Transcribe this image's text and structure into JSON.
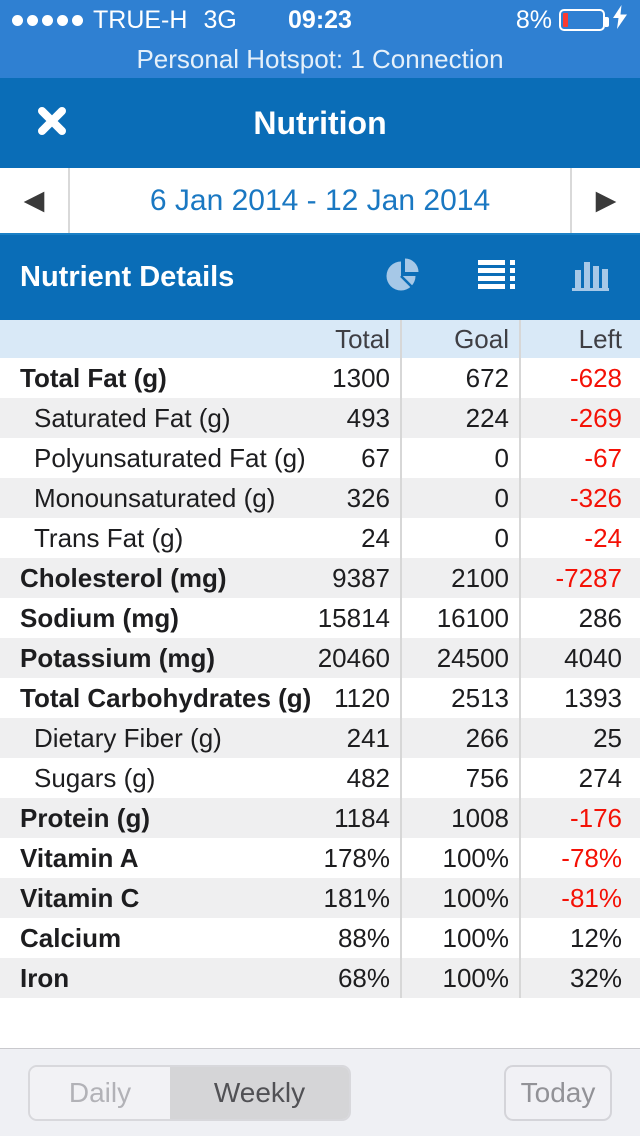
{
  "status_bar": {
    "carrier": "TRUE-H",
    "network": "3G",
    "time": "09:23",
    "battery_percent": "8%",
    "signal_dots": 5,
    "charging": true
  },
  "hotspot_banner": {
    "text": "Personal Hotspot: 1 Connection"
  },
  "nav": {
    "title": "Nutrition"
  },
  "date_nav": {
    "range": "6 Jan 2014 - 12 Jan 2014",
    "prev_arrow": "◀",
    "next_arrow": "▶"
  },
  "section_bar": {
    "title": "Nutrient Details",
    "icons": [
      "pie-chart",
      "list",
      "bar-chart"
    ],
    "active_icon": "list"
  },
  "table": {
    "columns": [
      "Total",
      "Goal",
      "Left"
    ],
    "rows": [
      {
        "label": "Total Fat (g)",
        "bold": true,
        "indent": false,
        "total": "1300",
        "goal": "672",
        "left": "-628",
        "left_negative": true
      },
      {
        "label": "Saturated Fat (g)",
        "bold": false,
        "indent": true,
        "total": "493",
        "goal": "224",
        "left": "-269",
        "left_negative": true
      },
      {
        "label": "Polyunsaturated Fat (g)",
        "bold": false,
        "indent": true,
        "total": "67",
        "goal": "0",
        "left": "-67",
        "left_negative": true
      },
      {
        "label": "Monounsaturated (g)",
        "bold": false,
        "indent": true,
        "total": "326",
        "goal": "0",
        "left": "-326",
        "left_negative": true
      },
      {
        "label": "Trans Fat (g)",
        "bold": false,
        "indent": true,
        "total": "24",
        "goal": "0",
        "left": "-24",
        "left_negative": true
      },
      {
        "label": "Cholesterol (mg)",
        "bold": true,
        "indent": false,
        "total": "9387",
        "goal": "2100",
        "left": "-7287",
        "left_negative": true
      },
      {
        "label": "Sodium (mg)",
        "bold": true,
        "indent": false,
        "total": "15814",
        "goal": "16100",
        "left": "286",
        "left_negative": false
      },
      {
        "label": "Potassium (mg)",
        "bold": true,
        "indent": false,
        "total": "20460",
        "goal": "24500",
        "left": "4040",
        "left_negative": false
      },
      {
        "label": "Total Carbohydrates (g)",
        "bold": true,
        "indent": false,
        "total": "1120",
        "goal": "2513",
        "left": "1393",
        "left_negative": false
      },
      {
        "label": "Dietary Fiber (g)",
        "bold": false,
        "indent": true,
        "total": "241",
        "goal": "266",
        "left": "25",
        "left_negative": false
      },
      {
        "label": "Sugars (g)",
        "bold": false,
        "indent": true,
        "total": "482",
        "goal": "756",
        "left": "274",
        "left_negative": false
      },
      {
        "label": "Protein (g)",
        "bold": true,
        "indent": false,
        "total": "1184",
        "goal": "1008",
        "left": "-176",
        "left_negative": true
      },
      {
        "label": "Vitamin A",
        "bold": true,
        "indent": false,
        "total": "178%",
        "goal": "100%",
        "left": "-78%",
        "left_negative": true
      },
      {
        "label": "Vitamin C",
        "bold": true,
        "indent": false,
        "total": "181%",
        "goal": "100%",
        "left": "-81%",
        "left_negative": true
      },
      {
        "label": "Calcium",
        "bold": true,
        "indent": false,
        "total": "88%",
        "goal": "100%",
        "left": "12%",
        "left_negative": false
      },
      {
        "label": "Iron",
        "bold": true,
        "indent": false,
        "total": "68%",
        "goal": "100%",
        "left": "32%",
        "left_negative": false
      }
    ]
  },
  "toolbar": {
    "daily_label": "Daily",
    "weekly_label": "Weekly",
    "today_label": "Today",
    "selected_segment": "Weekly"
  },
  "colors": {
    "status_blue": "#2f80d2",
    "nav_blue": "#0a6db7",
    "header_light_blue": "#d9e9f7",
    "row_shade": "#efeff0",
    "negative_red": "#f41106",
    "date_text_blue": "#1a78c2",
    "battery_red": "#fb3b30"
  }
}
